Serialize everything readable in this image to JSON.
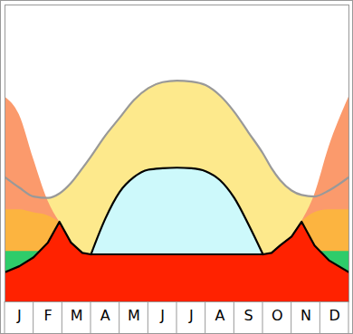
{
  "chart_data": {
    "type": "area",
    "x": [
      0,
      0.5,
      1,
      1.5,
      1.9,
      2.3,
      2.7,
      3,
      3.5,
      4,
      4.5,
      5,
      5.5,
      6,
      6.5,
      7,
      7.5,
      8,
      8.5,
      9,
      9.3,
      9.6,
      10,
      10.35,
      10.8,
      11.3,
      12
    ],
    "xlim": [
      0,
      12
    ],
    "xticks": [
      {
        "value": 0.5,
        "label": "J"
      },
      {
        "value": 1.5,
        "label": "F"
      },
      {
        "value": 2.5,
        "label": "M"
      },
      {
        "value": 3.5,
        "label": "A"
      },
      {
        "value": 4.5,
        "label": "M"
      },
      {
        "value": 5.5,
        "label": "J"
      },
      {
        "value": 6.5,
        "label": "J"
      },
      {
        "value": 7.5,
        "label": "A"
      },
      {
        "value": 8.5,
        "label": "S"
      },
      {
        "value": 9.5,
        "label": "O"
      },
      {
        "value": 10.5,
        "label": "N"
      },
      {
        "value": 11.5,
        "label": "D"
      }
    ],
    "ylim": [
      0,
      100
    ],
    "tick_labels": "x",
    "series": [
      {
        "color": "#fde98c",
        "values": [
          42,
          38.5,
          35.5,
          35,
          36.5,
          40,
          45,
          49,
          56,
          62,
          68,
          72,
          74,
          74.5,
          74.2,
          73,
          69.5,
          64,
          57,
          50,
          45,
          41,
          37.5,
          36,
          35.5,
          37.5,
          42
        ]
      },
      {
        "color": "#fb9a6c",
        "values": [
          69,
          63,
          48,
          34,
          27,
          null,
          null,
          null,
          null,
          null,
          null,
          null,
          null,
          null,
          null,
          null,
          null,
          null,
          null,
          null,
          null,
          null,
          null,
          27,
          36,
          52,
          69
        ]
      },
      {
        "color": "#fcb440",
        "values": [
          31,
          31,
          30,
          29,
          27,
          null,
          null,
          null,
          null,
          null,
          null,
          null,
          null,
          null,
          null,
          null,
          null,
          null,
          null,
          null,
          null,
          null,
          null,
          27,
          30,
          31,
          31
        ]
      },
      {
        "color": "#2ecc6a",
        "values": [
          17,
          17,
          17,
          17,
          null,
          null,
          null,
          null,
          null,
          null,
          null,
          null,
          null,
          null,
          null,
          null,
          null,
          null,
          null,
          null,
          null,
          null,
          null,
          null,
          17,
          17,
          17
        ]
      },
      {
        "color": "#cdf9fb",
        "values": [
          null,
          null,
          null,
          null,
          null,
          null,
          null,
          16,
          28,
          37,
          42,
          44.5,
          45,
          45.2,
          45,
          44,
          41,
          35,
          26,
          16,
          null,
          null,
          null,
          null,
          null,
          null,
          null
        ]
      },
      {
        "color": "#ff2200",
        "values": [
          10,
          12,
          15,
          20,
          27,
          20,
          16.5,
          16,
          16,
          16,
          16,
          16,
          16,
          16,
          16,
          16,
          16,
          16,
          16,
          16,
          16.5,
          19,
          22,
          27,
          19,
          14,
          10
        ]
      }
    ]
  }
}
